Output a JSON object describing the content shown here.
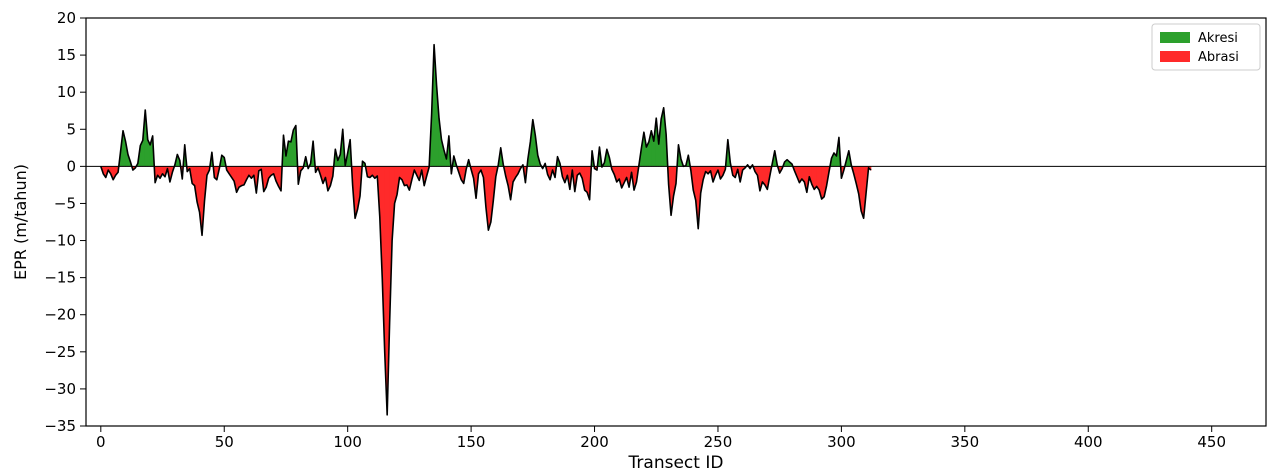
{
  "chart_data": {
    "type": "area",
    "title": "",
    "xlabel": "Transect ID",
    "ylabel": "EPR (m/tahun)",
    "xlim": [
      -6,
      472
    ],
    "ylim": [
      -35,
      20
    ],
    "x_ticks": [
      0,
      50,
      100,
      150,
      200,
      250,
      300,
      350,
      400,
      450
    ],
    "y_ticks": [
      -35,
      -30,
      -25,
      -20,
      -15,
      -10,
      -5,
      0,
      5,
      10,
      15,
      20
    ],
    "grid": false,
    "zero_line": true,
    "legend": {
      "placement": "top-right",
      "entries": [
        {
          "label": "Akresi",
          "color": "#2ca02c"
        },
        {
          "label": "Abrasi",
          "color": "#ff2a2a"
        }
      ]
    },
    "colors": {
      "positive_fill": "#2ca02c",
      "negative_fill": "#ff2a2a",
      "line": "#000000"
    },
    "series": [
      {
        "x_start": 0,
        "x_step": 1,
        "values": [
          0,
          -1,
          -1.5,
          -0.5,
          -1,
          -1.8,
          -1.2,
          -0.8,
          2,
          4.8,
          3.4,
          1.6,
          0.6,
          -0.5,
          -0.2,
          0.4,
          2.8,
          3.5,
          7.6,
          3.6,
          2.9,
          4.1,
          -2.2,
          -1.2,
          -1.6,
          -1,
          -1.4,
          -0.3,
          -2.1,
          -0.8,
          0.2,
          1.6,
          0.8,
          -1.7,
          2.9,
          -0.7,
          -0.3,
          -2.3,
          -2.6,
          -4.8,
          -6.2,
          -9.3,
          -4.7,
          -1.2,
          -0.5,
          1.9,
          -1.5,
          -1.8,
          -0.3,
          1.5,
          1.2,
          -0.5,
          -1,
          -1.5,
          -2,
          -3.5,
          -2.8,
          -2.6,
          -2.5,
          -1.8,
          -1.2,
          -1.6,
          -1.2,
          -3.6,
          -0.6,
          -0.4,
          -3.4,
          -2.8,
          -1.6,
          -1.2,
          -1,
          -2,
          -2.7,
          -3.3,
          4.2,
          1.4,
          3.4,
          3.3,
          4.9,
          5.5,
          -2.4,
          -0.6,
          -0.2,
          1.3,
          -0.3,
          0.4,
          3.4,
          -0.8,
          -0.2,
          -1.2,
          -2.3,
          -1.5,
          -3.3,
          -2.6,
          -1.3,
          2.3,
          0.8,
          1.6,
          5,
          0.1,
          1.8,
          3.6,
          -2.5,
          -7,
          -5.8,
          -4,
          0.7,
          0.4,
          -1.4,
          -1.5,
          -1.2,
          -1.6,
          -1.3,
          -6.8,
          -15,
          -25,
          -33.5,
          -21,
          -10,
          -5,
          -3.8,
          -1.5,
          -1.8,
          -2.6,
          -2.5,
          -3.2,
          -1.8,
          -0.5,
          -1.2,
          -1.9,
          -0.5,
          -2.6,
          -1.3,
          -0.1,
          7,
          16.4,
          11,
          6.5,
          3.6,
          2.2,
          1,
          4.1,
          -1,
          1.4,
          0.2,
          -0.8,
          -1.8,
          -2.3,
          -0.4,
          0.9,
          -0.4,
          -1.6,
          -4.3,
          -1,
          -0.5,
          -1.5,
          -5.5,
          -8.6,
          -7.5,
          -4.6,
          -1.4,
          0.2,
          2.5,
          0.3,
          -1.3,
          -2.6,
          -4.5,
          -2.1,
          -1.5,
          -1,
          -0.3,
          0.2,
          -2.2,
          1,
          3.3,
          6.3,
          4.2,
          1.5,
          0.3,
          -0.3,
          0.4,
          -1.1,
          -1.8,
          -0.5,
          -1.5,
          1.3,
          0.4,
          -1.4,
          -2.2,
          -1.2,
          -3.1,
          -0.5,
          -3.4,
          -1.2,
          -0.9,
          -1.6,
          -3.2,
          -3.5,
          -4.5,
          2.1,
          -0.3,
          -0.5,
          2.6,
          -0.1,
          0.5,
          2.3,
          1.2,
          -0.4,
          -1.1,
          -2.1,
          -1.7,
          -2.9,
          -2.2,
          -1.5,
          -2.8,
          -0.8,
          -3.2,
          -2.1,
          0.2,
          2.5,
          4.6,
          2.6,
          3.3,
          4.8,
          3.4,
          6.5,
          3,
          6.4,
          7.9,
          4.3,
          -2.4,
          -6.6,
          -4,
          -2.3,
          2.9,
          1,
          0,
          0.1,
          1.5,
          -0.5,
          -3.2,
          -4.6,
          -8.4,
          -3.6,
          -1.8,
          -0.7,
          -1,
          -0.6,
          -2.1,
          -1.2,
          -0.5,
          -1.7,
          -1.2,
          -0.4,
          3.6,
          0.5,
          -1.2,
          -1.5,
          -0.4,
          -2.1,
          -0.5,
          -0.2,
          0.2,
          -0.3,
          0.2,
          -0.7,
          -1.2,
          -3.3,
          -2.1,
          -2.5,
          -3.1,
          -1.3,
          0.4,
          2.1,
          0.2,
          -0.9,
          -0.3,
          0.6,
          0.9,
          0.6,
          0.3,
          -0.6,
          -1.4,
          -2.2,
          -1.7,
          -2.1,
          -3.5,
          -1.4,
          -2.4,
          -3.1,
          -2.7,
          -3.2,
          -4.4,
          -4.1,
          -2.6,
          -0.7,
          1.1,
          1.8,
          1.4,
          3.9,
          -1.6,
          -0.5,
          0.8,
          2.1,
          0.2,
          -1,
          -2.3,
          -3.7,
          -6,
          -7,
          -3.6,
          -0.2,
          -0.5
        ]
      }
    ]
  }
}
